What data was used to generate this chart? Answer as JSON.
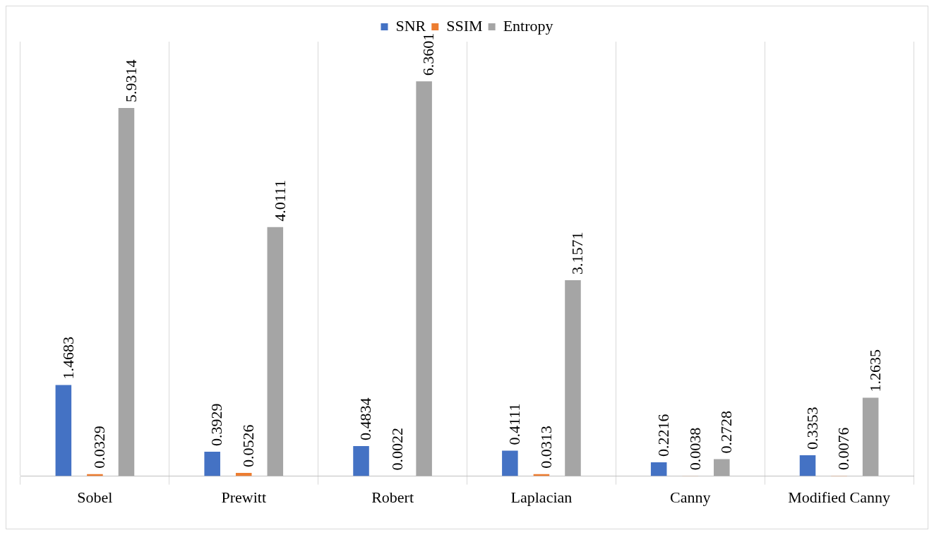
{
  "chart_data": {
    "type": "bar",
    "categories": [
      "Sobel",
      "Prewitt",
      "Robert",
      "Laplacian",
      "Canny",
      "Modified Canny"
    ],
    "series": [
      {
        "name": "SNR",
        "color": "#4472c4",
        "values": [
          1.4683,
          0.3929,
          0.4834,
          0.4111,
          0.2216,
          0.3353
        ]
      },
      {
        "name": "SSIM",
        "color": "#ed7d31",
        "values": [
          0.0329,
          0.0526,
          0.0022,
          0.0313,
          0.0038,
          0.0076
        ]
      },
      {
        "name": "Entropy",
        "color": "#a5a5a5",
        "values": [
          5.9314,
          4.0111,
          6.3601,
          3.1571,
          0.2728,
          1.2635
        ]
      }
    ],
    "data_labels": true,
    "grid": "x",
    "legend": "top",
    "tick_labels": "x"
  }
}
